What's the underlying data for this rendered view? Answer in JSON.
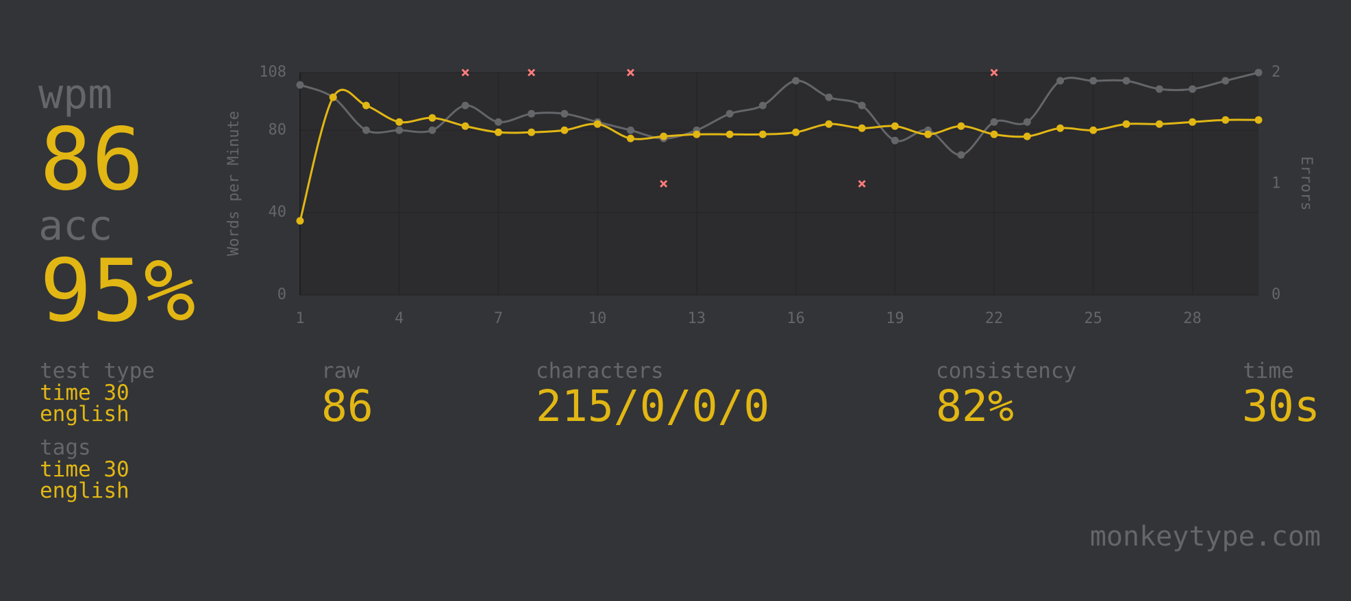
{
  "stats": {
    "wpm": {
      "label": "wpm",
      "value": "86"
    },
    "acc": {
      "label": "acc",
      "value": "95%"
    },
    "test_type": {
      "label": "test type",
      "lines": [
        "time 30",
        "english"
      ]
    },
    "tags": {
      "label": "tags",
      "lines": [
        "time 30",
        "english"
      ]
    },
    "raw": {
      "label": "raw",
      "value": "86"
    },
    "characters": {
      "label": "characters",
      "value": "215/0/0/0"
    },
    "consistency": {
      "label": "consistency",
      "value": "82%"
    },
    "time": {
      "label": "time",
      "value": "30s"
    }
  },
  "footer": "monkeytype.com",
  "chart_data": {
    "type": "line",
    "ylabel": "Words per Minute",
    "y2label": "Errors",
    "x": [
      1,
      2,
      3,
      4,
      5,
      6,
      7,
      8,
      9,
      10,
      11,
      12,
      13,
      14,
      15,
      16,
      17,
      18,
      19,
      20,
      21,
      22,
      23,
      24,
      25,
      26,
      27,
      28,
      29,
      30
    ],
    "xlim": [
      1,
      30
    ],
    "xticks": [
      1,
      4,
      7,
      10,
      13,
      16,
      19,
      22,
      25,
      28
    ],
    "ylim": [
      0,
      108
    ],
    "yticks": [
      0,
      40,
      80,
      108
    ],
    "y2lim": [
      0,
      2
    ],
    "y2ticks": [
      0,
      1,
      2
    ],
    "grid": true,
    "series": [
      {
        "type": "line",
        "color": "#646669",
        "values": [
          102,
          96,
          80,
          80,
          80,
          92,
          84,
          88,
          88,
          84,
          80,
          76,
          80,
          88,
          92,
          104,
          96,
          92,
          75,
          80,
          68,
          84,
          84,
          104,
          104,
          104,
          100,
          100,
          104,
          108
        ]
      },
      {
        "type": "line",
        "color": "#e2b714",
        "values": [
          36,
          96,
          92,
          84,
          86,
          82,
          79,
          79,
          80,
          83,
          76,
          77,
          78,
          78,
          78,
          79,
          83,
          81,
          82,
          78,
          82,
          78,
          77,
          81,
          80,
          83,
          83,
          84,
          85,
          85
        ]
      },
      {
        "type": "scatter",
        "axis": "y2",
        "color": "#ff7b7b",
        "values": [
          null,
          null,
          null,
          null,
          null,
          2,
          null,
          2,
          null,
          null,
          2,
          1,
          null,
          null,
          null,
          null,
          null,
          1,
          null,
          null,
          null,
          2,
          null,
          null,
          null,
          null,
          null,
          null,
          null,
          null
        ]
      }
    ]
  }
}
